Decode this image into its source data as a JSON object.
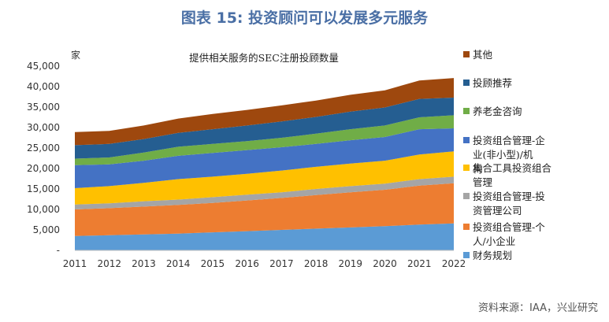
{
  "figure": {
    "title": "图表 15: 投资顾问可以发展多元服务",
    "source": "资料来源：IAA，兴业研究"
  },
  "chart_data": {
    "type": "area",
    "stacked": true,
    "title": "提供相关服务的SEC注册投顾数量",
    "ylabel": "家",
    "xlabel": "",
    "ylim": [
      0,
      45000
    ],
    "yticks": [
      "-",
      "5,000",
      "10,000",
      "15,000",
      "20,000",
      "25,000",
      "30,000",
      "35,000",
      "40,000",
      "45,000"
    ],
    "grid": false,
    "legend_position": "right",
    "categories": [
      "2011",
      "2012",
      "2013",
      "2014",
      "2015",
      "2016",
      "2017",
      "2018",
      "2019",
      "2020",
      "2021",
      "2022"
    ],
    "series": [
      {
        "name": "财务规划",
        "color": "#5b9bd5",
        "values": [
          3500,
          3700,
          3900,
          4100,
          4400,
          4700,
          5000,
          5300,
          5600,
          5900,
          6300,
          6600
        ]
      },
      {
        "name": "投资组合管理-个人/小企业",
        "color": "#ed7d31",
        "values": [
          6500,
          6600,
          6800,
          7000,
          7200,
          7500,
          7800,
          8200,
          8600,
          8900,
          9500,
          9800
        ]
      },
      {
        "name": "投资组合管理-投资管理公司",
        "color": "#a5a5a5",
        "values": [
          1200,
          1200,
          1300,
          1300,
          1400,
          1400,
          1400,
          1500,
          1500,
          1500,
          1600,
          1600
        ]
      },
      {
        "name": "集合工具投资组合管理",
        "color": "#ffc000",
        "values": [
          4000,
          4200,
          4500,
          5000,
          5000,
          5100,
          5300,
          5400,
          5500,
          5600,
          6000,
          6200
        ]
      },
      {
        "name": "投资组合管理-企业(非小型)/机构",
        "color": "#4472c4",
        "values": [
          5600,
          5300,
          5400,
          5700,
          5800,
          5800,
          5700,
          5600,
          5700,
          5800,
          6200,
          5600
        ]
      },
      {
        "name": "养老金咨询",
        "color": "#70ad47",
        "values": [
          1600,
          1700,
          2000,
          2200,
          2200,
          2200,
          2300,
          2500,
          2700,
          2800,
          2900,
          3200
        ]
      },
      {
        "name": "投顾推荐",
        "color": "#255e91",
        "values": [
          3300,
          3300,
          3300,
          3400,
          3600,
          3800,
          4000,
          4100,
          4300,
          4400,
          4500,
          4300
        ]
      },
      {
        "name": "其他",
        "color": "#9e480e",
        "values": [
          3200,
          3200,
          3300,
          3500,
          3700,
          3800,
          3900,
          4000,
          4100,
          4200,
          4500,
          4800
        ]
      }
    ]
  }
}
